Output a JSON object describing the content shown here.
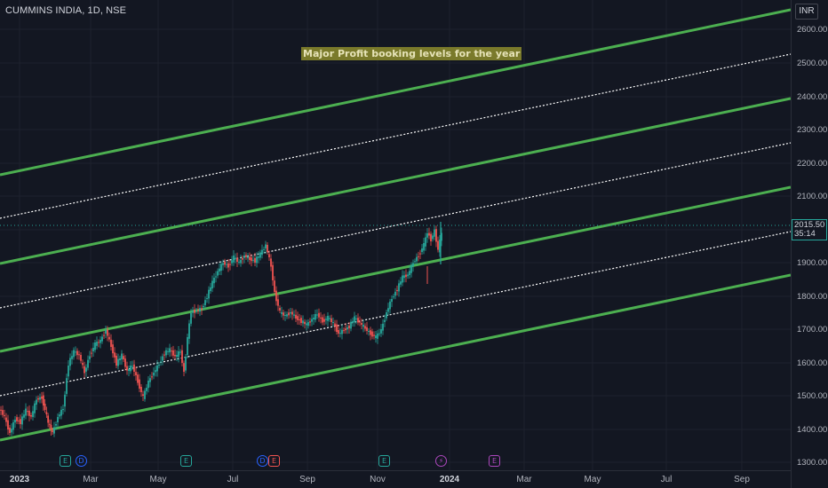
{
  "symbol": {
    "title": "CUMMINS INDIA, 1D, NSE"
  },
  "annotation": {
    "text": "Major Profit booking levels for the year",
    "color": "#7a7a2b"
  },
  "currency": "INR",
  "last_price": {
    "value": "2015.50",
    "countdown": "35:14",
    "color": "#26a69a"
  },
  "price_axis": {
    "ticks": [
      "2600.00",
      "2500.00",
      "2400.00",
      "2300.00",
      "2200.00",
      "2100.00",
      "1900.00",
      "1800.00",
      "1700.00",
      "1600.00",
      "1500.00",
      "1400.00",
      "1300.00"
    ]
  },
  "time_axis": {
    "labels": [
      "2023",
      "Mar",
      "May",
      "Jul",
      "Sep",
      "Nov",
      "2024",
      "Mar",
      "May",
      "Jul",
      "Sep"
    ]
  },
  "events": [
    {
      "type": "earnings",
      "icon": "E",
      "color": "#26a69a"
    },
    {
      "type": "dividend",
      "icon": "D",
      "color": "#2962ff"
    },
    {
      "type": "earnings",
      "icon": "E",
      "color": "#26a69a"
    },
    {
      "type": "dividend",
      "icon": "D",
      "color": "#2962ff"
    },
    {
      "type": "earnings",
      "icon": "E",
      "color": "#ef5350"
    },
    {
      "type": "earnings",
      "icon": "E",
      "color": "#26a69a"
    },
    {
      "type": "split",
      "icon": "⚡",
      "color": "#ab47bc"
    },
    {
      "type": "earnings",
      "icon": "E",
      "color": "#ab47bc"
    }
  ],
  "colors": {
    "background": "#131722",
    "up": "#26a69a",
    "down": "#ef5350",
    "channel_line": "#4caf50",
    "dotted_line": "#ffffff"
  }
}
